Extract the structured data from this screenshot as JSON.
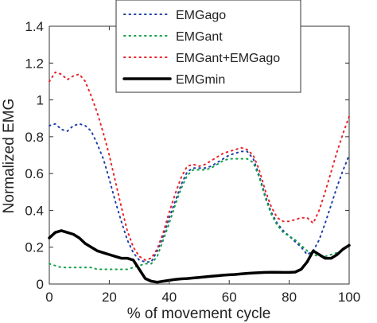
{
  "chart_data": {
    "type": "line",
    "xlabel": "% of movement cycle",
    "ylabel": "Normalized EMG",
    "xlim": [
      0,
      100
    ],
    "ylim": [
      0,
      1.4
    ],
    "xticks": [
      "0",
      "20",
      "40",
      "60",
      "80",
      "100"
    ],
    "yticks": [
      "0",
      "0.2",
      "0.4",
      "0.6",
      "0.8",
      "1",
      "1.2",
      "1.4"
    ],
    "grid": false,
    "legend": "top-center",
    "series": [
      {
        "name": "EMGago",
        "color": "#1f3faa",
        "style": "dotted",
        "x": [
          0,
          2,
          4,
          6,
          8,
          10,
          12,
          14,
          16,
          18,
          20,
          22,
          24,
          26,
          28,
          30,
          32,
          34,
          36,
          38,
          40,
          42,
          44,
          46,
          48,
          50,
          52,
          54,
          56,
          58,
          60,
          62,
          64,
          66,
          68,
          70,
          72,
          74,
          76,
          78,
          80,
          82,
          84,
          86,
          88,
          90,
          92,
          94,
          96,
          98,
          100
        ],
        "y": [
          0.86,
          0.87,
          0.84,
          0.83,
          0.86,
          0.87,
          0.86,
          0.83,
          0.76,
          0.68,
          0.57,
          0.45,
          0.34,
          0.24,
          0.17,
          0.13,
          0.12,
          0.12,
          0.18,
          0.26,
          0.36,
          0.45,
          0.54,
          0.61,
          0.63,
          0.63,
          0.63,
          0.64,
          0.66,
          0.68,
          0.7,
          0.71,
          0.72,
          0.72,
          0.68,
          0.59,
          0.48,
          0.39,
          0.33,
          0.29,
          0.26,
          0.23,
          0.2,
          0.16,
          0.18,
          0.24,
          0.33,
          0.43,
          0.53,
          0.62,
          0.7
        ]
      },
      {
        "name": "EMGant",
        "color": "#14a04a",
        "style": "dotted",
        "x": [
          0,
          2,
          4,
          6,
          8,
          10,
          12,
          14,
          16,
          18,
          20,
          22,
          24,
          26,
          28,
          30,
          32,
          34,
          36,
          38,
          40,
          42,
          44,
          46,
          48,
          50,
          52,
          54,
          56,
          58,
          60,
          62,
          64,
          66,
          68,
          70,
          72,
          74,
          76,
          78,
          80,
          82,
          84,
          86,
          88,
          90,
          92,
          94,
          96,
          98,
          100
        ],
        "y": [
          0.11,
          0.1,
          0.09,
          0.09,
          0.09,
          0.09,
          0.09,
          0.09,
          0.08,
          0.08,
          0.08,
          0.08,
          0.08,
          0.08,
          0.09,
          0.1,
          0.11,
          0.11,
          0.15,
          0.24,
          0.33,
          0.43,
          0.52,
          0.59,
          0.62,
          0.62,
          0.62,
          0.63,
          0.65,
          0.67,
          0.68,
          0.68,
          0.68,
          0.68,
          0.66,
          0.58,
          0.47,
          0.38,
          0.32,
          0.28,
          0.26,
          0.24,
          0.21,
          0.18,
          0.16,
          0.15,
          0.15,
          0.16,
          0.17,
          0.19,
          0.21
        ]
      },
      {
        "name": "EMGant+EMGago",
        "color": "#e8252a",
        "style": "dotted",
        "x": [
          0,
          2,
          4,
          6,
          8,
          10,
          12,
          14,
          16,
          18,
          20,
          22,
          24,
          26,
          28,
          30,
          32,
          34,
          36,
          38,
          40,
          42,
          44,
          46,
          48,
          50,
          52,
          54,
          56,
          58,
          60,
          62,
          64,
          66,
          68,
          70,
          72,
          74,
          76,
          78,
          80,
          82,
          84,
          86,
          88,
          90,
          92,
          94,
          96,
          98,
          100
        ],
        "y": [
          1.1,
          1.15,
          1.14,
          1.11,
          1.13,
          1.14,
          1.1,
          1.02,
          0.93,
          0.82,
          0.7,
          0.56,
          0.42,
          0.29,
          0.2,
          0.15,
          0.13,
          0.14,
          0.19,
          0.28,
          0.39,
          0.49,
          0.58,
          0.64,
          0.65,
          0.64,
          0.65,
          0.67,
          0.69,
          0.71,
          0.72,
          0.73,
          0.74,
          0.73,
          0.7,
          0.62,
          0.51,
          0.42,
          0.36,
          0.34,
          0.34,
          0.35,
          0.36,
          0.36,
          0.33,
          0.4,
          0.5,
          0.61,
          0.72,
          0.82,
          0.91
        ]
      },
      {
        "name": "EMGmin",
        "color": "#000000",
        "style": "solid",
        "x": [
          0,
          2,
          4,
          6,
          8,
          10,
          12,
          14,
          16,
          18,
          20,
          22,
          24,
          26,
          28,
          30,
          32,
          34,
          36,
          38,
          40,
          42,
          44,
          46,
          48,
          50,
          52,
          54,
          56,
          58,
          60,
          62,
          64,
          66,
          68,
          70,
          72,
          74,
          76,
          78,
          80,
          82,
          84,
          86,
          88,
          90,
          92,
          94,
          96,
          98,
          100
        ],
        "y": [
          0.25,
          0.28,
          0.29,
          0.28,
          0.27,
          0.25,
          0.22,
          0.2,
          0.18,
          0.17,
          0.16,
          0.15,
          0.14,
          0.14,
          0.13,
          0.08,
          0.03,
          0.015,
          0.01,
          0.015,
          0.02,
          0.025,
          0.028,
          0.03,
          0.033,
          0.036,
          0.039,
          0.042,
          0.045,
          0.048,
          0.05,
          0.052,
          0.055,
          0.058,
          0.06,
          0.062,
          0.063,
          0.064,
          0.064,
          0.063,
          0.063,
          0.065,
          0.08,
          0.12,
          0.18,
          0.16,
          0.14,
          0.14,
          0.16,
          0.19,
          0.21
        ]
      }
    ]
  }
}
